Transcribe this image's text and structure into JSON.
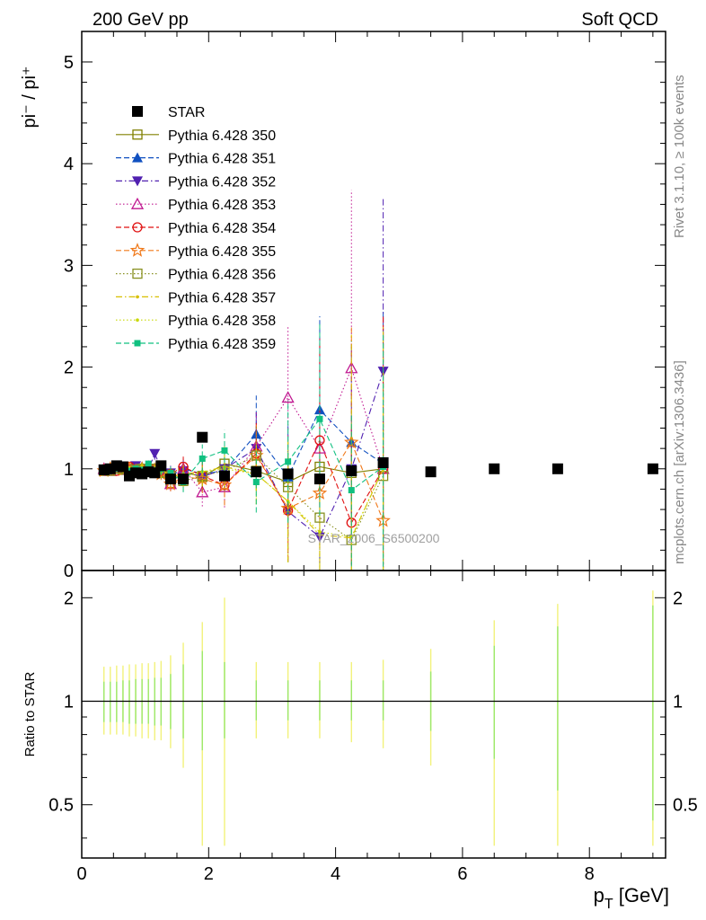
{
  "header": {
    "left": "200 GeV pp",
    "right": "Soft QCD"
  },
  "side_labels": {
    "rivet": "Rivet 3.1.10, ≥ 100k events",
    "mcplots": "mcplots.cern.ch [arXiv:1306.3436]"
  },
  "watermark": "STAR_2006_S6500200",
  "colors": {
    "STAR": "#000000",
    "350": "#808000",
    "351": "#1050c0",
    "352": "#5020b0",
    "353": "#c01890",
    "354": "#e01010",
    "355": "#f07818",
    "356": "#889020",
    "357": "#d8c000",
    "358": "#c8d800",
    "359": "#10c080"
  },
  "chart_data": [
    {
      "type": "scatter",
      "panel": "main",
      "ylabel": "pi⁻ / pi⁺",
      "xlim": [
        0,
        9.2
      ],
      "ylim": [
        0,
        5.3
      ],
      "yticks": [
        "0",
        "1",
        "2",
        "3",
        "4",
        "5"
      ],
      "legend": {
        "placement": "top-left"
      },
      "series": [
        {
          "name": "STAR",
          "marker": "square-filled",
          "line": "none",
          "x": [
            0.35,
            0.45,
            0.55,
            0.65,
            0.75,
            0.85,
            0.95,
            1.05,
            1.15,
            1.25,
            1.4,
            1.6,
            1.9,
            2.25,
            2.75,
            3.25,
            3.75,
            4.25,
            4.75,
            5.5,
            6.5,
            7.5,
            9.0
          ],
          "y": [
            0.99,
            1.0,
            1.03,
            1.02,
            0.93,
            0.96,
            0.95,
            0.97,
            0.96,
            1.03,
            0.9,
            0.9,
            1.31,
            0.93,
            0.97,
            0.95,
            0.9,
            0.98,
            1.06,
            0.97,
            1.0,
            1.0,
            1.0
          ],
          "yerr": [
            0.02,
            0.02,
            0.02,
            0.02,
            0.02,
            0.02,
            0.02,
            0.02,
            0.02,
            0.02,
            0.02,
            0.02,
            0.03,
            0.02,
            0.02,
            0.02,
            0.02,
            0.02,
            0.02,
            0.02,
            0.02,
            0.02,
            0.02
          ]
        },
        {
          "name": "Pythia 6.428 350",
          "marker": "square-open",
          "line": "solid",
          "x": [
            0.35,
            0.45,
            0.55,
            0.65,
            0.75,
            0.85,
            0.95,
            1.05,
            1.15,
            1.25,
            1.4,
            1.6,
            1.9,
            2.25,
            2.75,
            3.25,
            3.75,
            4.25,
            4.75
          ],
          "y": [
            0.98,
            0.99,
            1.0,
            0.99,
            1.0,
            0.99,
            0.99,
            0.98,
            1.0,
            0.97,
            0.86,
            0.97,
            0.92,
            1.05,
            0.98,
            0.87,
            1.02,
            0.96,
            1.0
          ],
          "yerr": [
            0.01,
            0.01,
            0.01,
            0.02,
            0.02,
            0.03,
            0.03,
            0.04,
            0.05,
            0.06,
            0.07,
            0.09,
            0.12,
            0.16,
            0.2,
            0.28,
            0.36,
            0.45,
            0.5
          ]
        },
        {
          "name": "Pythia 6.428 351",
          "marker": "triangle-up-filled",
          "line": "dashed",
          "x": [
            0.35,
            0.45,
            0.55,
            0.65,
            0.75,
            0.85,
            0.95,
            1.05,
            1.15,
            1.25,
            1.4,
            1.6,
            1.9,
            2.25,
            2.75,
            3.25,
            3.75,
            4.25,
            4.75
          ],
          "y": [
            1.0,
            0.99,
            1.0,
            1.01,
            1.0,
            0.98,
            1.02,
            0.99,
            1.0,
            0.98,
            0.93,
            1.0,
            0.95,
            0.98,
            1.34,
            0.92,
            1.58,
            1.26,
            1.05
          ],
          "yerr": [
            0.01,
            0.01,
            0.01,
            0.02,
            0.02,
            0.03,
            0.03,
            0.04,
            0.05,
            0.06,
            0.07,
            0.1,
            0.14,
            0.2,
            0.38,
            0.5,
            0.92,
            1.0,
            1.5
          ]
        },
        {
          "name": "Pythia 6.428 352",
          "marker": "triangle-down-filled",
          "line": "dashdot",
          "x": [
            0.35,
            0.45,
            0.55,
            0.65,
            0.75,
            0.85,
            0.95,
            1.05,
            1.15,
            1.25,
            1.4,
            1.6,
            1.9,
            2.25,
            2.75,
            3.25,
            3.75,
            4.25,
            4.75
          ],
          "y": [
            0.99,
            1.0,
            1.01,
            1.0,
            0.98,
            1.03,
            1.0,
            0.99,
            1.15,
            1.0,
            0.96,
            0.98,
            0.92,
            1.0,
            1.2,
            0.58,
            0.33,
            1.0,
            1.96
          ],
          "yerr": [
            0.01,
            0.01,
            0.01,
            0.02,
            0.02,
            0.03,
            0.03,
            0.04,
            0.06,
            0.06,
            0.07,
            0.1,
            0.14,
            0.2,
            0.35,
            0.5,
            0.6,
            1.2,
            1.7
          ]
        },
        {
          "name": "Pythia 6.428 353",
          "marker": "triangle-up-open",
          "line": "dotted",
          "x": [
            0.35,
            0.45,
            0.55,
            0.65,
            0.75,
            0.85,
            0.95,
            1.05,
            1.15,
            1.25,
            1.4,
            1.6,
            1.9,
            2.25,
            2.75,
            3.25,
            3.75,
            4.25,
            4.75
          ],
          "y": [
            1.0,
            0.98,
            1.01,
            1.0,
            0.99,
            0.97,
            1.0,
            1.02,
            0.98,
            0.99,
            0.85,
            1.0,
            0.77,
            0.82,
            1.22,
            1.7,
            1.2,
            1.99,
            1.0
          ],
          "yerr": [
            0.01,
            0.01,
            0.01,
            0.02,
            0.02,
            0.03,
            0.03,
            0.04,
            0.05,
            0.06,
            0.07,
            0.1,
            0.14,
            0.2,
            0.35,
            0.7,
            0.9,
            1.75,
            1.5
          ]
        },
        {
          "name": "Pythia 6.428 354",
          "marker": "circle-open",
          "line": "dashed",
          "x": [
            0.35,
            0.45,
            0.55,
            0.65,
            0.75,
            0.85,
            0.95,
            1.05,
            1.15,
            1.25,
            1.4,
            1.6,
            1.9,
            2.25,
            2.75,
            3.25,
            3.75,
            4.25,
            4.75
          ],
          "y": [
            0.99,
            1.0,
            0.98,
            1.0,
            1.02,
            0.99,
            0.97,
            1.01,
            1.0,
            0.98,
            0.95,
            1.02,
            0.93,
            0.84,
            1.15,
            0.59,
            1.28,
            0.47,
            1.0
          ],
          "yerr": [
            0.01,
            0.01,
            0.01,
            0.02,
            0.02,
            0.03,
            0.03,
            0.04,
            0.05,
            0.06,
            0.07,
            0.1,
            0.14,
            0.2,
            0.3,
            0.5,
            1.0,
            0.9,
            1.5
          ]
        },
        {
          "name": "Pythia 6.428 355",
          "marker": "star-open",
          "line": "dashed",
          "x": [
            0.35,
            0.45,
            0.55,
            0.65,
            0.75,
            0.85,
            0.95,
            1.05,
            1.15,
            1.25,
            1.4,
            1.6,
            1.9,
            2.25,
            2.75,
            3.25,
            3.75,
            4.25,
            4.75
          ],
          "y": [
            0.98,
            1.0,
            1.0,
            0.99,
            1.0,
            0.98,
            1.0,
            0.97,
            0.99,
            0.95,
            0.85,
            0.92,
            0.9,
            0.84,
            1.13,
            0.61,
            0.76,
            1.26,
            0.49
          ],
          "yerr": [
            0.01,
            0.01,
            0.01,
            0.02,
            0.02,
            0.03,
            0.03,
            0.04,
            0.05,
            0.06,
            0.07,
            0.1,
            0.14,
            0.2,
            0.3,
            0.5,
            0.7,
            1.15,
            0.5
          ]
        },
        {
          "name": "Pythia 6.428 356",
          "marker": "square-open",
          "line": "dotted",
          "x": [
            0.35,
            0.45,
            0.55,
            0.65,
            0.75,
            0.85,
            0.95,
            1.05,
            1.15,
            1.25,
            1.4,
            1.6,
            1.9,
            2.25,
            2.75,
            3.25,
            3.75,
            4.25,
            4.75
          ],
          "y": [
            0.99,
            0.98,
            1.0,
            1.0,
            0.97,
            0.99,
            1.0,
            0.98,
            1.0,
            0.96,
            0.93,
            0.88,
            0.93,
            0.98,
            1.13,
            0.82,
            0.52,
            0.3,
            0.93
          ],
          "yerr": [
            0.01,
            0.01,
            0.01,
            0.02,
            0.02,
            0.03,
            0.03,
            0.04,
            0.05,
            0.06,
            0.07,
            0.1,
            0.14,
            0.2,
            0.3,
            0.5,
            0.55,
            0.45,
            0.9
          ]
        },
        {
          "name": "Pythia 6.428 357",
          "marker": "dot",
          "line": "dashdot",
          "x": [
            0.35,
            0.45,
            0.55,
            0.65,
            0.75,
            0.85,
            0.95,
            1.05,
            1.15,
            1.25,
            1.4,
            1.6,
            1.9,
            2.25,
            2.75,
            3.25,
            3.75,
            4.25,
            4.75
          ],
          "y": [
            1.0,
            0.99,
            1.01,
            0.98,
            1.0,
            0.99,
            1.03,
            1.0,
            0.98,
            1.0,
            0.92,
            0.95,
            0.97,
            1.02,
            0.95,
            0.68,
            0.35,
            0.32,
            1.0
          ],
          "yerr": [
            0.01,
            0.01,
            0.01,
            0.02,
            0.02,
            0.03,
            0.03,
            0.04,
            0.05,
            0.06,
            0.07,
            0.1,
            0.14,
            0.2,
            0.3,
            0.6,
            0.6,
            2.0,
            1.4
          ]
        },
        {
          "name": "Pythia 6.428 358",
          "marker": "dot",
          "line": "dotted",
          "x": [
            0.35,
            0.45,
            0.55,
            0.65,
            0.75,
            0.85,
            0.95,
            1.05,
            1.15,
            1.25,
            1.4,
            1.6,
            1.9,
            2.25,
            2.75,
            3.25,
            3.75,
            4.25,
            4.75
          ],
          "y": [
            0.99,
            1.0,
            0.99,
            1.0,
            1.01,
            0.98,
            1.0,
            0.97,
            1.0,
            0.97,
            0.94,
            0.92,
            0.97,
            1.0,
            0.95,
            0.68,
            0.38,
            0.33,
            1.0
          ],
          "yerr": [
            0.01,
            0.01,
            0.01,
            0.02,
            0.02,
            0.03,
            0.03,
            0.04,
            0.05,
            0.06,
            0.07,
            0.1,
            0.14,
            0.2,
            0.3,
            0.6,
            0.6,
            0.6,
            1.3
          ]
        },
        {
          "name": "Pythia 6.428 359",
          "marker": "square-small-filled",
          "line": "dashed",
          "x": [
            0.35,
            0.45,
            0.55,
            0.65,
            0.75,
            0.85,
            0.95,
            1.05,
            1.15,
            1.25,
            1.4,
            1.6,
            1.9,
            2.25,
            2.75,
            3.25,
            3.75,
            4.25,
            4.75
          ],
          "y": [
            1.0,
            0.99,
            1.0,
            1.0,
            0.98,
            1.0,
            0.99,
            1.05,
            0.97,
            1.0,
            0.96,
            0.87,
            1.1,
            1.18,
            0.87,
            1.07,
            1.49,
            0.79,
            1.02
          ],
          "yerr": [
            0.01,
            0.01,
            0.01,
            0.02,
            0.02,
            0.03,
            0.03,
            0.04,
            0.05,
            0.06,
            0.07,
            0.1,
            0.14,
            0.2,
            0.3,
            0.6,
            0.95,
            0.75,
            1.3
          ]
        }
      ]
    },
    {
      "type": "scatter",
      "panel": "ratio",
      "xlabel": "p_T [GeV]",
      "ylabel": "Ratio to STAR",
      "xlim": [
        0,
        9.2
      ],
      "ylim": [
        0.35,
        2.4
      ],
      "log_y": true,
      "xticks": [
        "0",
        "2",
        "4",
        "6",
        "8"
      ],
      "yticks": [
        "0.5",
        "1",
        "2"
      ],
      "reference_line": 1,
      "bands": {
        "x": [
          0.35,
          0.45,
          0.55,
          0.65,
          0.75,
          0.85,
          0.95,
          1.05,
          1.15,
          1.25,
          1.4,
          1.6,
          1.9,
          2.25,
          2.75,
          3.25,
          3.75,
          4.25,
          4.75,
          5.5,
          6.5,
          7.5,
          9.0
        ],
        "stat_lo": [
          0.87,
          0.87,
          0.87,
          0.87,
          0.86,
          0.86,
          0.86,
          0.86,
          0.85,
          0.85,
          0.83,
          0.78,
          0.72,
          0.78,
          0.88,
          0.88,
          0.88,
          0.88,
          0.88,
          0.82,
          0.68,
          0.55,
          0.45
        ],
        "stat_hi": [
          1.14,
          1.14,
          1.14,
          1.15,
          1.15,
          1.16,
          1.16,
          1.16,
          1.17,
          1.17,
          1.2,
          1.28,
          1.4,
          1.3,
          1.15,
          1.15,
          1.15,
          1.15,
          1.15,
          1.22,
          1.45,
          1.65,
          1.9
        ],
        "total_lo": [
          0.8,
          0.8,
          0.8,
          0.8,
          0.79,
          0.79,
          0.78,
          0.78,
          0.77,
          0.77,
          0.73,
          0.64,
          0.38,
          0.38,
          0.78,
          0.78,
          0.78,
          0.76,
          0.73,
          0.65,
          0.38,
          0.38,
          0.38
        ],
        "total_hi": [
          1.26,
          1.26,
          1.27,
          1.27,
          1.28,
          1.28,
          1.29,
          1.29,
          1.3,
          1.31,
          1.36,
          1.48,
          1.7,
          2.0,
          1.3,
          1.3,
          1.3,
          1.3,
          1.32,
          1.42,
          1.72,
          1.92,
          2.1
        ]
      }
    }
  ]
}
